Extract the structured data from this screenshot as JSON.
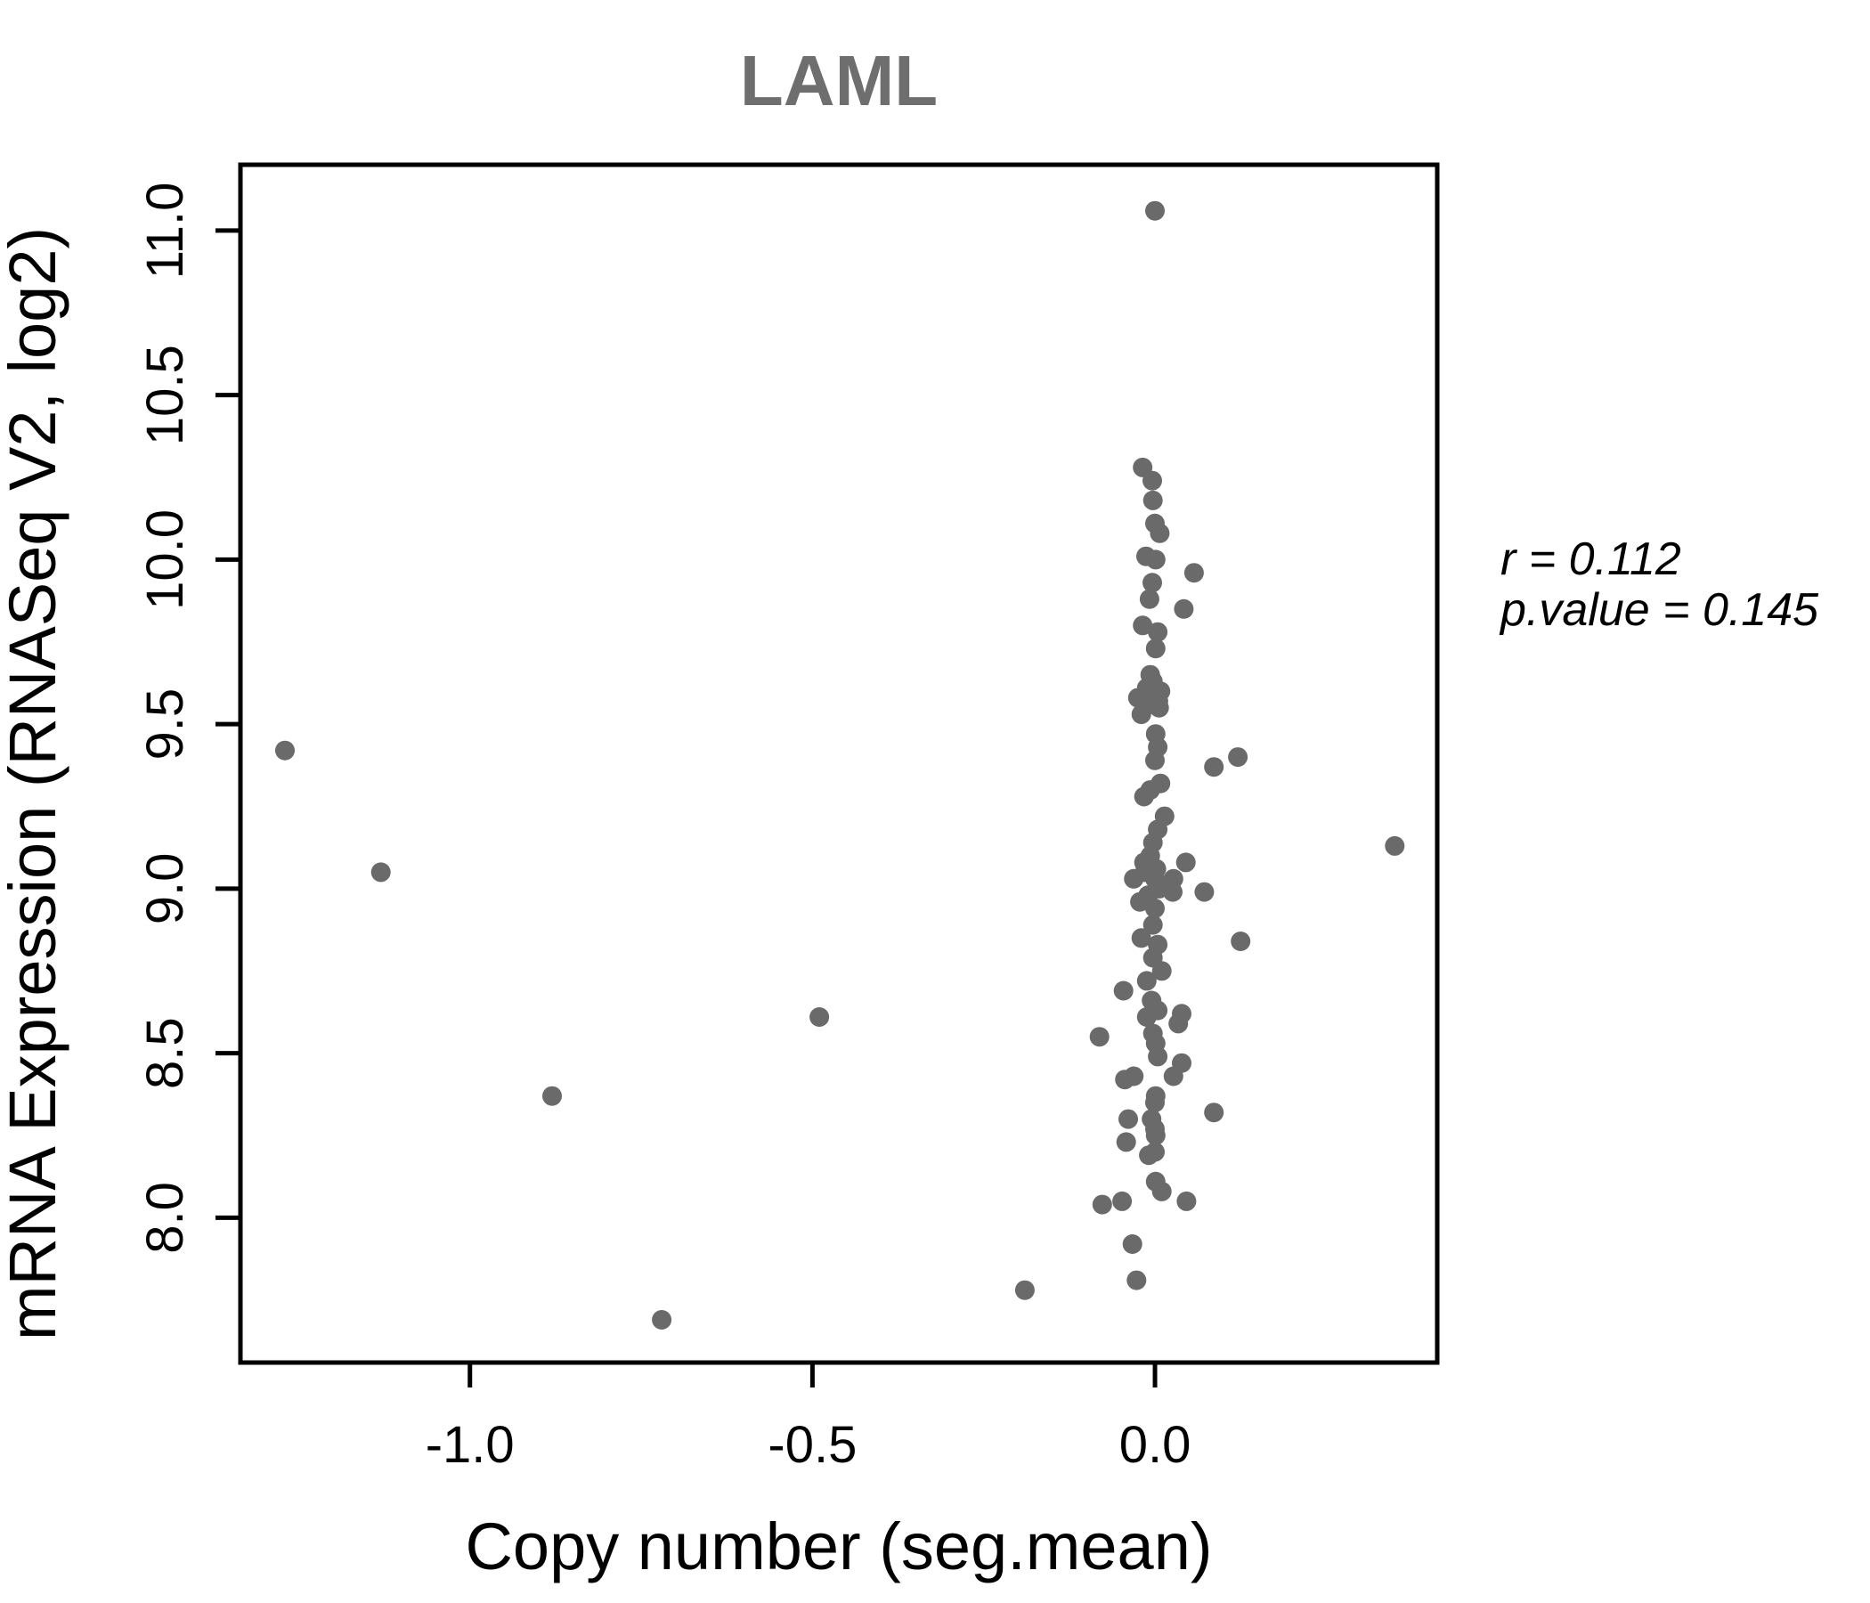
{
  "chart_data": {
    "type": "scatter",
    "title": "LAML",
    "xlabel": "Copy number (seg.mean)",
    "ylabel": "mRNA Expression (RNASeq V2, log2)",
    "annotation": {
      "line1": "r = 0.112",
      "line2": "p.value = 0.145"
    },
    "xlim": [
      -1.335,
      0.412
    ],
    "ylim": [
      7.56,
      11.2
    ],
    "x_ticks": [
      -1.0,
      -0.5,
      0.0
    ],
    "x_tick_labels": [
      "-1.0",
      "-0.5",
      "0.0"
    ],
    "y_ticks": [
      8.0,
      8.5,
      9.0,
      9.5,
      10.0,
      10.5,
      11.0
    ],
    "y_tick_labels": [
      "8.0",
      "8.5",
      "9.0",
      "9.5",
      "10.0",
      "10.5",
      "11.0"
    ],
    "grid": false,
    "legend": "none",
    "colors": {
      "point": "#6a6a6a",
      "axis": "#000000",
      "title": "#6e6e6e"
    },
    "point_radius_px": 11,
    "points": [
      [
        -1.27,
        9.42
      ],
      [
        -1.13,
        9.05
      ],
      [
        -0.88,
        8.37
      ],
      [
        -0.72,
        7.69
      ],
      [
        -0.49,
        8.61
      ],
      [
        -0.19,
        7.78
      ],
      [
        0.35,
        9.13
      ],
      [
        0.0,
        11.06
      ],
      [
        -0.018,
        10.28
      ],
      [
        -0.004,
        10.24
      ],
      [
        -0.003,
        10.18
      ],
      [
        0.0,
        10.11
      ],
      [
        0.007,
        10.08
      ],
      [
        -0.013,
        10.01
      ],
      [
        0.001,
        10.0
      ],
      [
        0.057,
        9.96
      ],
      [
        -0.004,
        9.93
      ],
      [
        -0.008,
        9.88
      ],
      [
        0.042,
        9.85
      ],
      [
        -0.018,
        9.8
      ],
      [
        0.004,
        9.78
      ],
      [
        0.001,
        9.73
      ],
      [
        -0.007,
        9.65
      ],
      [
        -0.003,
        9.63
      ],
      [
        -0.012,
        9.61
      ],
      [
        0.008,
        9.6
      ],
      [
        -0.025,
        9.58
      ],
      [
        0.005,
        9.57
      ],
      [
        -0.007,
        9.56
      ],
      [
        0.006,
        9.55
      ],
      [
        -0.02,
        9.53
      ],
      [
        0.001,
        9.47
      ],
      [
        0.004,
        9.43
      ],
      [
        0.121,
        9.4
      ],
      [
        0.0,
        9.39
      ],
      [
        0.086,
        9.37
      ],
      [
        0.008,
        9.32
      ],
      [
        -0.007,
        9.3
      ],
      [
        -0.016,
        9.28
      ],
      [
        0.014,
        9.22
      ],
      [
        0.004,
        9.18
      ],
      [
        -0.003,
        9.14
      ],
      [
        -0.007,
        9.1
      ],
      [
        0.045,
        9.08
      ],
      [
        -0.016,
        9.08
      ],
      [
        0.002,
        9.06
      ],
      [
        -0.015,
        9.05
      ],
      [
        -0.031,
        9.03
      ],
      [
        0.027,
        9.03
      ],
      [
        0.0,
        9.03
      ],
      [
        0.006,
        9.0
      ],
      [
        0.026,
        8.99
      ],
      [
        0.072,
        8.99
      ],
      [
        -0.01,
        8.98
      ],
      [
        -0.022,
        8.96
      ],
      [
        0.0,
        8.94
      ],
      [
        -0.003,
        8.89
      ],
      [
        -0.02,
        8.85
      ],
      [
        0.125,
        8.84
      ],
      [
        0.004,
        8.83
      ],
      [
        -0.003,
        8.79
      ],
      [
        0.01,
        8.75
      ],
      [
        -0.012,
        8.72
      ],
      [
        -0.046,
        8.69
      ],
      [
        -0.005,
        8.66
      ],
      [
        0.004,
        8.63
      ],
      [
        0.039,
        8.62
      ],
      [
        -0.012,
        8.61
      ],
      [
        0.034,
        8.59
      ],
      [
        -0.003,
        8.56
      ],
      [
        -0.081,
        8.55
      ],
      [
        0.001,
        8.53
      ],
      [
        0.004,
        8.49
      ],
      [
        0.039,
        8.47
      ],
      [
        -0.031,
        8.43
      ],
      [
        0.027,
        8.43
      ],
      [
        -0.044,
        8.42
      ],
      [
        0.001,
        8.37
      ],
      [
        0.0,
        8.35
      ],
      [
        0.086,
        8.32
      ],
      [
        -0.039,
        8.3
      ],
      [
        -0.005,
        8.3
      ],
      [
        0.0,
        8.27
      ],
      [
        0.001,
        8.25
      ],
      [
        -0.042,
        8.23
      ],
      [
        0.0,
        8.2
      ],
      [
        -0.009,
        8.19
      ],
      [
        0.001,
        8.11
      ],
      [
        0.01,
        8.08
      ],
      [
        -0.048,
        8.05
      ],
      [
        0.046,
        8.05
      ],
      [
        -0.077,
        8.04
      ],
      [
        -0.033,
        7.92
      ],
      [
        -0.027,
        7.81
      ]
    ]
  }
}
